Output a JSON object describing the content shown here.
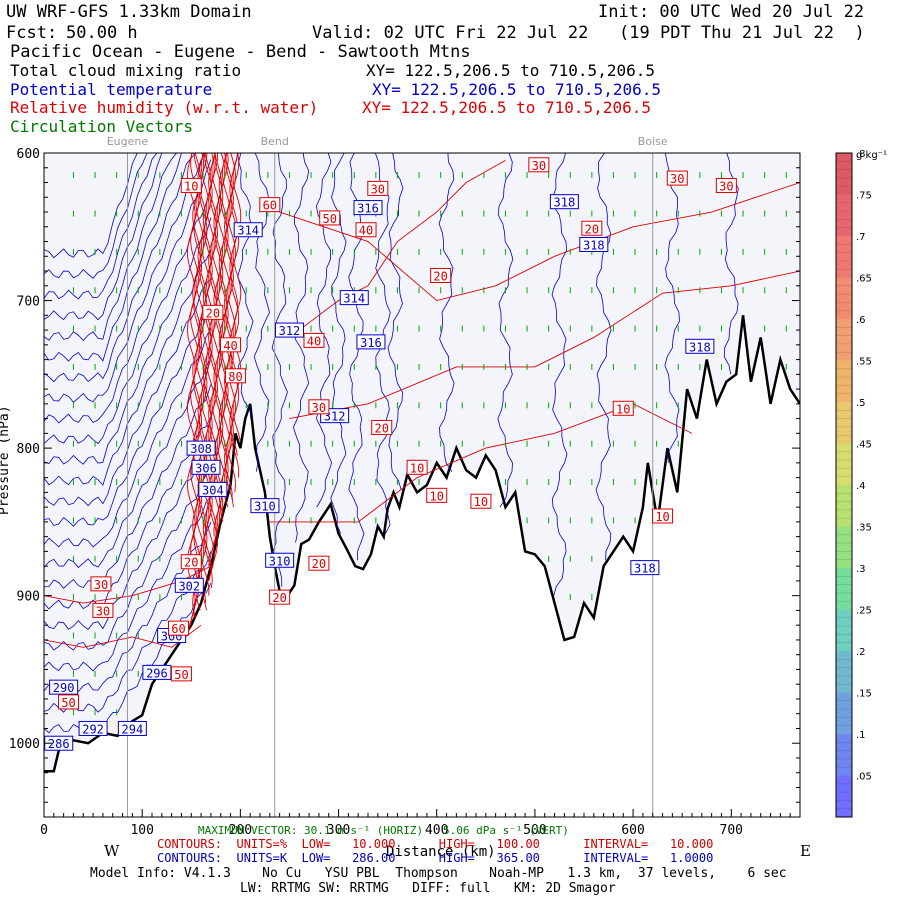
{
  "header": {
    "title_left": "UW WRF-GFS 1.33km Domain",
    "init": "Init: 00 UTC Wed 20 Jul 22",
    "fcst_label": "Fcst:",
    "fcst_value": "50.00 h",
    "valid": "Valid: 02 UTC Fri 22 Jul 22   (19 PDT Thu 21 Jul 22  )",
    "cross_section": "Pacific Ocean - Eugene - Bend - Sawtooth Mtns",
    "fields": [
      {
        "name": "Total cloud mixing ratio",
        "xy": "XY= 122.5,206.5 to 710.5,206.5",
        "color": "#000000"
      },
      {
        "name": "Potential temperature",
        "xy": "XY= 122.5,206.5 to 710.5,206.5",
        "color": "#0000cc"
      },
      {
        "name": "Relative humidity (w.r.t. water)",
        "xy": "XY= 122.5,206.5 to 710.5,206.5",
        "color": "#dd0000"
      },
      {
        "name": "Circulation Vectors",
        "xy": "",
        "color": "#007700"
      }
    ]
  },
  "chart_data": {
    "type": "cross-section",
    "xlabel": "Distance (km)",
    "ylabel": "Pressure (hPa)",
    "xlim": [
      0,
      770
    ],
    "ylim": [
      1050,
      600
    ],
    "x_ticks": [
      0,
      100,
      200,
      300,
      400,
      500,
      600,
      700
    ],
    "y_ticks": [
      600,
      700,
      800,
      900,
      1000
    ],
    "y_tick_labels": [
      "600",
      "700",
      "800",
      "900",
      "1000"
    ],
    "left_direction": "W",
    "right_direction": "E",
    "locations": [
      {
        "name": "Eugene",
        "x": 85
      },
      {
        "name": "Bend",
        "x": 235
      },
      {
        "name": "Boise",
        "x": 620
      }
    ],
    "terrain_top_hPa": [
      [
        0,
        1019
      ],
      [
        10,
        1019
      ],
      [
        15,
        1005
      ],
      [
        30,
        998
      ],
      [
        45,
        1000
      ],
      [
        60,
        993
      ],
      [
        75,
        995
      ],
      [
        90,
        985
      ],
      [
        100,
        981
      ],
      [
        110,
        960
      ],
      [
        120,
        950
      ],
      [
        130,
        940
      ],
      [
        140,
        930
      ],
      [
        150,
        920
      ],
      [
        160,
        905
      ],
      [
        170,
        880
      ],
      [
        180,
        850
      ],
      [
        190,
        825
      ],
      [
        195,
        790
      ],
      [
        200,
        800
      ],
      [
        205,
        780
      ],
      [
        210,
        770
      ],
      [
        215,
        800
      ],
      [
        220,
        815
      ],
      [
        225,
        830
      ],
      [
        230,
        860
      ],
      [
        235,
        880
      ],
      [
        240,
        897
      ],
      [
        250,
        898
      ],
      [
        255,
        893
      ],
      [
        262,
        865
      ],
      [
        270,
        862
      ],
      [
        280,
        850
      ],
      [
        292,
        838
      ],
      [
        300,
        858
      ],
      [
        308,
        868
      ],
      [
        317,
        880
      ],
      [
        325,
        882
      ],
      [
        333,
        872
      ],
      [
        340,
        853
      ],
      [
        346,
        860
      ],
      [
        350,
        841
      ],
      [
        356,
        830
      ],
      [
        362,
        840
      ],
      [
        370,
        818
      ],
      [
        380,
        830
      ],
      [
        390,
        825
      ],
      [
        400,
        810
      ],
      [
        410,
        820
      ],
      [
        420,
        800
      ],
      [
        430,
        815
      ],
      [
        440,
        820
      ],
      [
        450,
        805
      ],
      [
        460,
        815
      ],
      [
        470,
        840
      ],
      [
        480,
        830
      ],
      [
        490,
        870
      ],
      [
        500,
        872
      ],
      [
        510,
        880
      ],
      [
        520,
        905
      ],
      [
        530,
        930
      ],
      [
        540,
        928
      ],
      [
        550,
        905
      ],
      [
        560,
        915
      ],
      [
        570,
        880
      ],
      [
        580,
        870
      ],
      [
        590,
        860
      ],
      [
        600,
        870
      ],
      [
        610,
        840
      ],
      [
        615,
        810
      ],
      [
        625,
        850
      ],
      [
        635,
        800
      ],
      [
        645,
        830
      ],
      [
        655,
        760
      ],
      [
        665,
        780
      ],
      [
        675,
        740
      ],
      [
        685,
        770
      ],
      [
        695,
        755
      ],
      [
        705,
        750
      ],
      [
        712,
        710
      ],
      [
        720,
        755
      ],
      [
        730,
        725
      ],
      [
        740,
        770
      ],
      [
        750,
        740
      ],
      [
        760,
        760
      ],
      [
        770,
        770
      ]
    ],
    "potential_temperature_labels_K": [
      {
        "x": 15,
        "p": 1000,
        "value": "286"
      },
      {
        "x": 20,
        "p": 962,
        "value": "290"
      },
      {
        "x": 50,
        "p": 990,
        "value": "292"
      },
      {
        "x": 90,
        "p": 990,
        "value": "294"
      },
      {
        "x": 115,
        "p": 952,
        "value": "296"
      },
      {
        "x": 130,
        "p": 927,
        "value": "300"
      },
      {
        "x": 148,
        "p": 893,
        "value": "302"
      },
      {
        "x": 165,
        "p": 813,
        "value": "306"
      },
      {
        "x": 172,
        "p": 828,
        "value": "304"
      },
      {
        "x": 160,
        "p": 800,
        "value": "308"
      },
      {
        "x": 225,
        "p": 839,
        "value": "310"
      },
      {
        "x": 240,
        "p": 876,
        "value": "310"
      },
      {
        "x": 250,
        "p": 720,
        "value": "312"
      },
      {
        "x": 296,
        "p": 778,
        "value": "312"
      },
      {
        "x": 208,
        "p": 652,
        "value": "314"
      },
      {
        "x": 316,
        "p": 698,
        "value": "314"
      },
      {
        "x": 333,
        "p": 728,
        "value": "316"
      },
      {
        "x": 330,
        "p": 637,
        "value": "316"
      },
      {
        "x": 530,
        "p": 633,
        "value": "318"
      },
      {
        "x": 560,
        "p": 662,
        "value": "318"
      },
      {
        "x": 612,
        "p": 881,
        "value": "318"
      },
      {
        "x": 668,
        "p": 731,
        "value": "318"
      }
    ],
    "relative_humidity_labels_pct": [
      {
        "x": 150,
        "p": 622,
        "value": "10"
      },
      {
        "x": 172,
        "p": 708,
        "value": "20"
      },
      {
        "x": 190,
        "p": 730,
        "value": "40"
      },
      {
        "x": 195,
        "p": 751,
        "value": "80"
      },
      {
        "x": 230,
        "p": 635,
        "value": "60"
      },
      {
        "x": 340,
        "p": 624,
        "value": "30"
      },
      {
        "x": 291,
        "p": 644,
        "value": "50"
      },
      {
        "x": 328,
        "p": 652,
        "value": "40"
      },
      {
        "x": 275,
        "p": 727,
        "value": "40"
      },
      {
        "x": 280,
        "p": 772,
        "value": "30"
      },
      {
        "x": 344,
        "p": 786,
        "value": "20"
      },
      {
        "x": 404,
        "p": 683,
        "value": "20"
      },
      {
        "x": 504,
        "p": 608,
        "value": "30"
      },
      {
        "x": 558,
        "p": 651,
        "value": "20"
      },
      {
        "x": 645,
        "p": 617,
        "value": "30"
      },
      {
        "x": 695,
        "p": 622,
        "value": "30"
      },
      {
        "x": 590,
        "p": 773,
        "value": "10"
      },
      {
        "x": 380,
        "p": 813,
        "value": "10"
      },
      {
        "x": 400,
        "p": 832,
        "value": "10"
      },
      {
        "x": 445,
        "p": 836,
        "value": "10"
      },
      {
        "x": 630,
        "p": 846,
        "value": "10"
      },
      {
        "x": 58,
        "p": 892,
        "value": "30"
      },
      {
        "x": 60,
        "p": 910,
        "value": "30"
      },
      {
        "x": 137,
        "p": 922,
        "value": "60"
      },
      {
        "x": 140,
        "p": 953,
        "value": "50"
      },
      {
        "x": 25,
        "p": 972,
        "value": "50"
      },
      {
        "x": 150,
        "p": 877,
        "value": "20"
      },
      {
        "x": 280,
        "p": 878,
        "value": "20"
      },
      {
        "x": 240,
        "p": 901,
        "value": "20"
      }
    ],
    "colorbar": {
      "units": "g kg⁻¹",
      "ticks": [
        ".05",
        ".1",
        ".15",
        ".2",
        ".25",
        ".3",
        ".35",
        ".4",
        ".45",
        ".5",
        ".55",
        ".6",
        ".65",
        ".7",
        ".75",
        ".8"
      ],
      "colors": [
        "#6e6eff",
        "#6f86f0",
        "#70a0e0",
        "#70b8d0",
        "#70d0c0",
        "#76de9c",
        "#96e082",
        "#b8e070",
        "#d8dc70",
        "#e8c86e",
        "#eeb46e",
        "#f0a06e",
        "#f08c70",
        "#f07872",
        "#e66670",
        "#dc5a64"
      ]
    },
    "legend_footer": {
      "max_vector": "MAXIMUM VECTOR: 30.1 m s⁻¹ (HORIZ)   5.06 dPa s⁻¹ (VERT)",
      "rh_contours": "CONTOURS:  UNITS=%  LOW=   10.000      HIGH=   100.00      INTERVAL=   10.000",
      "theta_contours": "CONTOURS:  UNITS=K  LOW=   286.00      HIGH=   365.00      INTERVAL=   1.0000",
      "model_info": "Model Info: V4.1.3    No Cu   YSU PBL  Thompson    Noah-MP   1.3 km,  37 levels,    6 sec",
      "model_info2": "LW: RRTMG SW: RRTMG   DIFF: full   KM: 2D Smagor"
    }
  }
}
